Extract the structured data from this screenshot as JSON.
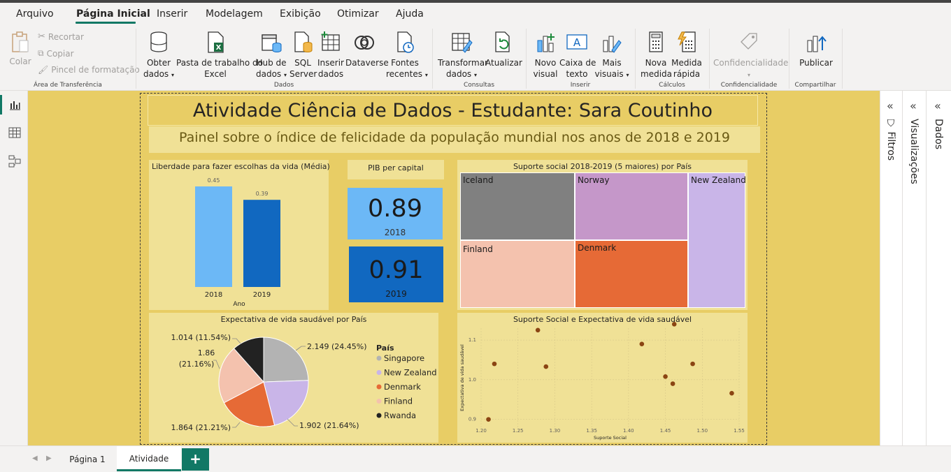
{
  "menu": {
    "items": [
      "Arquivo",
      "Página Inicial",
      "Inserir",
      "Modelagem",
      "Exibição",
      "Otimizar",
      "Ajuda"
    ],
    "active": "Página Inicial"
  },
  "ribbon": {
    "clipboard": {
      "paste": "Colar",
      "cut": "Recortar",
      "copy": "Copiar",
      "format_painter": "Pincel de formatação",
      "group": "Área de Transferência"
    },
    "data": {
      "get_data_1": "Obter",
      "get_data_2": "dados",
      "excel_1": "Pasta de trabalho do",
      "excel_2": "Excel",
      "hub_1": "Hub de",
      "hub_2": "dados",
      "sql_1": "SQL",
      "sql_2": "Server",
      "enter_1": "Inserir",
      "enter_2": "dados",
      "dataverse": "Dataverse",
      "recent_1": "Fontes",
      "recent_2": "recentes",
      "group": "Dados"
    },
    "queries": {
      "transform_1": "Transformar",
      "transform_2": "dados",
      "refresh": "Atualizar",
      "group": "Consultas"
    },
    "insert": {
      "new_visual_1": "Novo",
      "new_visual_2": "visual",
      "textbox_1": "Caixa de",
      "textbox_2": "texto",
      "more_1": "Mais",
      "more_2": "visuais",
      "group": "Inserir"
    },
    "calc": {
      "new_measure_1": "Nova",
      "new_measure_2": "medida",
      "quick_1": "Medida",
      "quick_2": "rápida",
      "group": "Cálculos"
    },
    "sensitivity": {
      "label": "Confidencialidade",
      "group": "Confidencialidade"
    },
    "share": {
      "publish": "Publicar",
      "group": "Compartilhar"
    }
  },
  "panes": {
    "filters": "Filtros",
    "visualizations": "Visualizações",
    "data": "Dados"
  },
  "pages": {
    "tabs": [
      "Página 1",
      "Atividade"
    ],
    "active": "Atividade",
    "add": "+"
  },
  "report": {
    "title": "Atividade Ciência de Dados - Estudante: Sara Coutinho",
    "subtitle": "Painel sobre o índice de felicidade da população mundial nos anos de 2018 e 2019",
    "colors": {
      "canvas": "#e8cd65",
      "panel": "#f0e196",
      "accent": "#117865"
    }
  },
  "chart_data": [
    {
      "type": "bar",
      "title": "Liberdade para fazer escolhas da vida (Média)",
      "xlabel": "Ano",
      "categories": [
        "2018",
        "2019"
      ],
      "values": [
        0.45,
        0.39
      ],
      "data_labels": [
        "0.45",
        "0.39"
      ],
      "colors": [
        "#6cb8f6",
        "#1168c0"
      ],
      "ylim": [
        0,
        0.5
      ]
    },
    {
      "type": "table",
      "title": "PIB per capital",
      "cards": [
        {
          "value": "0.89",
          "label": "2018",
          "color": "#6cb8f6"
        },
        {
          "value": "0.91",
          "label": "2019",
          "color": "#1168c0"
        }
      ]
    },
    {
      "type": "heatmap",
      "subtype": "treemap",
      "title": "Suporte social 2018-2019 (5 maiores) por País",
      "items": [
        {
          "name": "Iceland",
          "color": "#808080"
        },
        {
          "name": "Norway",
          "color": "#c597c9"
        },
        {
          "name": "New Zealand",
          "color": "#c9b5e8"
        },
        {
          "name": "Finland",
          "color": "#f4c2ae"
        },
        {
          "name": "Denmark",
          "color": "#e66a36"
        }
      ]
    },
    {
      "type": "pie",
      "title": "Expectativa de vida saudável por País",
      "legend_title": "País",
      "legend_position": "right",
      "slices": [
        {
          "name": "Singapore",
          "value": 2.149,
          "label": "2.149 (24.45%)",
          "color": "#b3b3b3"
        },
        {
          "name": "New Zealand",
          "value": 1.902,
          "label": "1.902 (21.64%)",
          "color": "#c9b5e8"
        },
        {
          "name": "Denmark",
          "value": 1.864,
          "label": "1.864 (21.21%)",
          "color": "#e66a36"
        },
        {
          "name": "Finland",
          "value": 1.86,
          "label_1": "1.86",
          "label_2": "(21.16%)",
          "color": "#f4c2ae"
        },
        {
          "name": "Rwanda",
          "value": 1.014,
          "label": "1.014 (11.54%)",
          "color": "#222222"
        }
      ]
    },
    {
      "type": "scatter",
      "title": "Suporte Social e Expectativa de vida saudável",
      "xlabel": "Suporte Social",
      "ylabel": "Expectativa de vida saudável",
      "xlim": [
        1.2,
        1.55
      ],
      "ylim": [
        0.88,
        1.13
      ],
      "xticks": [
        "1.20",
        "1.25",
        "1.30",
        "1.35",
        "1.40",
        "1.45",
        "1.50",
        "1.55"
      ],
      "yticks": [
        "0.9",
        "1.0",
        "1.1"
      ],
      "grid": true,
      "color": "#8b4513",
      "points": [
        {
          "x": 1.21,
          "y": 0.9
        },
        {
          "x": 1.218,
          "y": 1.04
        },
        {
          "x": 1.277,
          "y": 1.125
        },
        {
          "x": 1.288,
          "y": 1.033
        },
        {
          "x": 1.418,
          "y": 1.09
        },
        {
          "x": 1.45,
          "y": 1.008
        },
        {
          "x": 1.46,
          "y": 0.99
        },
        {
          "x": 1.462,
          "y": 1.14
        },
        {
          "x": 1.487,
          "y": 1.04
        },
        {
          "x": 1.54,
          "y": 0.966
        }
      ]
    }
  ]
}
